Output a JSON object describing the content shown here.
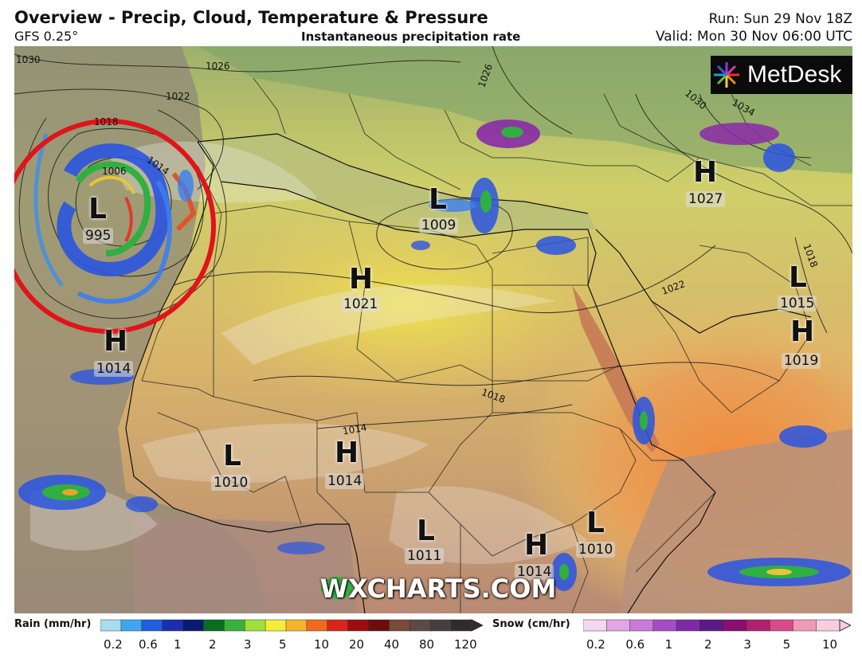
{
  "header": {
    "title": "Overview - Precip, Cloud, Temperature & Pressure",
    "model": "GFS 0.25°",
    "subtitle": "Instantaneous precipitation rate",
    "run": "Run: Sun 29 Nov 18Z",
    "valid": "Valid: Mon 30 Nov 06:00 UTC"
  },
  "logo": {
    "text": "MetDesk",
    "icon": "metdesk-starburst-icon"
  },
  "watermark": "WXCHARTS.COM",
  "pressure_systems": [
    {
      "type": "L",
      "value": "995"
    },
    {
      "type": "H",
      "value": "1014"
    },
    {
      "type": "H",
      "value": "1021"
    },
    {
      "type": "L",
      "value": "1009"
    },
    {
      "type": "H",
      "value": "1027"
    },
    {
      "type": "L",
      "value": "1015"
    },
    {
      "type": "H",
      "value": "1019"
    },
    {
      "type": "L",
      "value": "1010"
    },
    {
      "type": "H",
      "value": "1014"
    },
    {
      "type": "L",
      "value": "1011"
    },
    {
      "type": "H",
      "value": "1014"
    },
    {
      "type": "L",
      "value": "1010"
    }
  ],
  "isobar_labels": [
    "1030",
    "1026",
    "1022",
    "1018",
    "1014",
    "1006",
    "1018",
    "1014",
    "1018",
    "1022",
    "1026",
    "1030",
    "1034",
    "1018"
  ],
  "legend": {
    "rain_title": "Rain (mm/hr)",
    "rain_ticks": [
      "0.2",
      "0.6",
      "1",
      "2",
      "3",
      "5",
      "10",
      "20",
      "40",
      "80",
      "120"
    ],
    "rain_colors": [
      "#a9dcee",
      "#3fa6ee",
      "#1f5fe0",
      "#1a2fb0",
      "#0a1a70",
      "#0b6e1e",
      "#38b23a",
      "#9fe03a",
      "#f3ee3a",
      "#f5b52a",
      "#ef6a1f",
      "#d9241a",
      "#9e0d0d",
      "#6b0d0d",
      "#7a4a3a",
      "#5c4a44",
      "#454040",
      "#2f2c2c"
    ],
    "snow_title": "Snow (cm/hr)",
    "snow_ticks": [
      "0.2",
      "0.6",
      "1",
      "2",
      "3",
      "5",
      "10"
    ],
    "snow_colors": [
      "#f4d8f2",
      "#e2a6e6",
      "#c97ad8",
      "#a64cc4",
      "#7e2aa8",
      "#5a1a86",
      "#8a0f6e",
      "#b0206e",
      "#d94a8a",
      "#f09ab8",
      "#f7cde0"
    ]
  },
  "annotation": {
    "shape": "circle",
    "color": "#e0141a"
  }
}
